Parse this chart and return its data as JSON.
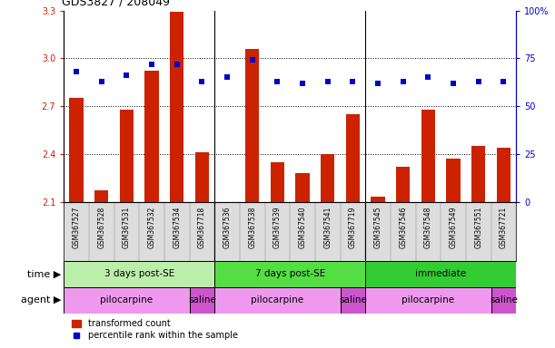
{
  "title": "GDS3827 / 208049",
  "samples": [
    "GSM367527",
    "GSM367528",
    "GSM367531",
    "GSM367532",
    "GSM367534",
    "GSM367718",
    "GSM367536",
    "GSM367538",
    "GSM367539",
    "GSM367540",
    "GSM367541",
    "GSM367719",
    "GSM367545",
    "GSM367546",
    "GSM367548",
    "GSM367549",
    "GSM367551",
    "GSM367721"
  ],
  "bar_values": [
    2.75,
    2.17,
    2.68,
    2.92,
    3.29,
    2.41,
    2.1,
    3.06,
    2.35,
    2.28,
    2.4,
    2.65,
    2.13,
    2.32,
    2.68,
    2.37,
    2.45,
    2.44
  ],
  "dot_values": [
    68,
    63,
    66,
    72,
    72,
    63,
    65,
    74,
    63,
    62,
    63,
    63,
    62,
    63,
    65,
    62,
    63,
    63
  ],
  "ylim_left": [
    2.1,
    3.3
  ],
  "ylim_right": [
    0,
    100
  ],
  "yticks_left": [
    2.1,
    2.4,
    2.7,
    3.0,
    3.3
  ],
  "yticks_right": [
    0,
    25,
    50,
    75,
    100
  ],
  "ytick_labels_left": [
    "2.1",
    "2.4",
    "2.7",
    "3.0",
    "3.3"
  ],
  "ytick_labels_right": [
    "0",
    "25",
    "50",
    "75",
    "100%"
  ],
  "hlines": [
    3.0,
    2.7,
    2.4
  ],
  "bar_color": "#cc2200",
  "dot_color": "#0000cc",
  "bar_bottom": 2.1,
  "time_groups": [
    {
      "label": "3 days post-SE",
      "start": 0,
      "end": 6,
      "color": "#bbeeaa"
    },
    {
      "label": "7 days post-SE",
      "start": 6,
      "end": 12,
      "color": "#55dd44"
    },
    {
      "label": "immediate",
      "start": 12,
      "end": 18,
      "color": "#33cc33"
    }
  ],
  "agent_groups": [
    {
      "label": "pilocarpine",
      "start": 0,
      "end": 5,
      "color": "#ee99ee"
    },
    {
      "label": "saline",
      "start": 5,
      "end": 6,
      "color": "#cc55cc"
    },
    {
      "label": "pilocarpine",
      "start": 6,
      "end": 11,
      "color": "#ee99ee"
    },
    {
      "label": "saline",
      "start": 11,
      "end": 12,
      "color": "#cc55cc"
    },
    {
      "label": "pilocarpine",
      "start": 12,
      "end": 17,
      "color": "#ee99ee"
    },
    {
      "label": "saline",
      "start": 17,
      "end": 18,
      "color": "#cc55cc"
    }
  ],
  "time_label": "time",
  "agent_label": "agent",
  "legend_bar_label": "transformed count",
  "legend_dot_label": "percentile rank within the sample",
  "plot_bg": "#ffffff",
  "xtick_bg": "#dddddd"
}
